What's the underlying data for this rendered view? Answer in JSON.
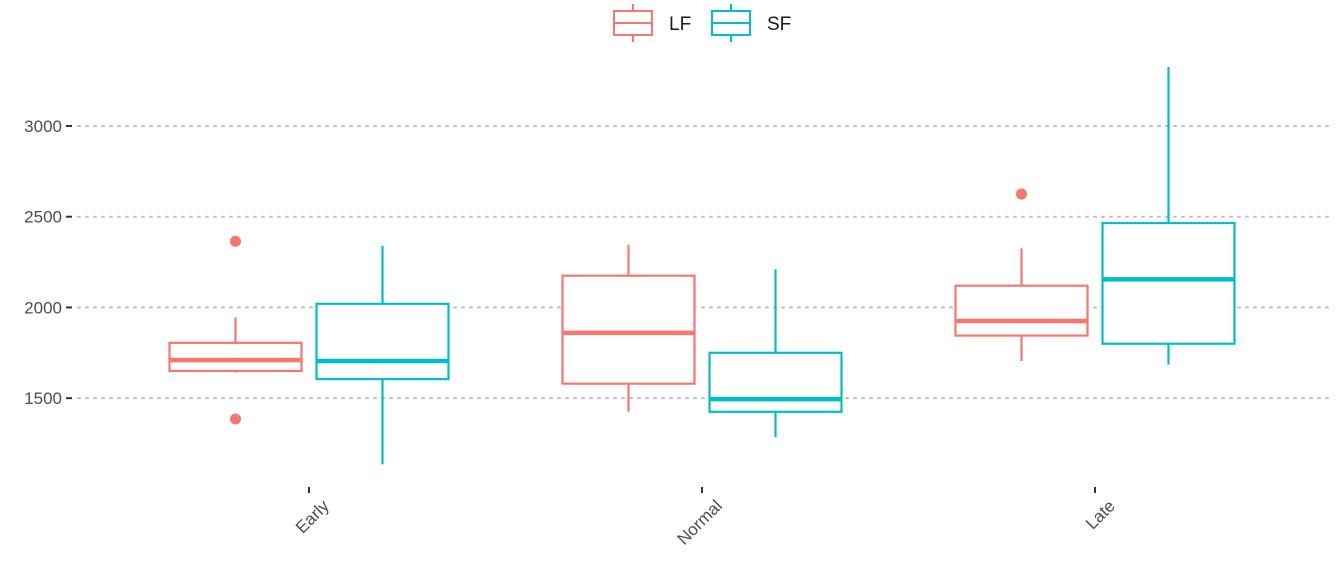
{
  "chart_data": {
    "type": "boxplot",
    "categories": [
      "Early",
      "Normal",
      "Late"
    ],
    "ylim": [
      1060,
      3430
    ],
    "y_ticks": [
      1500,
      2000,
      2500,
      3000
    ],
    "grid": "horizontal dotted major lines",
    "legend_position": "top",
    "xlabel": "",
    "ylabel": "",
    "colors": {
      "LF": "#F8766D",
      "SF": "#00BFC4"
    },
    "series": [
      {
        "name": "LF",
        "color": "#F8766D",
        "boxes": [
          {
            "category": "Early",
            "whisker_low": 1640,
            "q1": 1650,
            "median": 1710,
            "q3": 1805,
            "whisker_high": 1945,
            "outliers": [
              2365,
              1385
            ]
          },
          {
            "category": "Normal",
            "whisker_low": 1425,
            "q1": 1580,
            "median": 1860,
            "q3": 2175,
            "whisker_high": 2345,
            "outliers": []
          },
          {
            "category": "Late",
            "whisker_low": 1705,
            "q1": 1845,
            "median": 1925,
            "q3": 2120,
            "whisker_high": 2325,
            "outliers": [
              2625
            ]
          }
        ]
      },
      {
        "name": "SF",
        "color": "#00BFC4",
        "boxes": [
          {
            "category": "Early",
            "whisker_low": 1135,
            "q1": 1605,
            "median": 1705,
            "q3": 2020,
            "whisker_high": 2340,
            "outliers": []
          },
          {
            "category": "Normal",
            "whisker_low": 1285,
            "q1": 1425,
            "median": 1495,
            "q3": 1750,
            "whisker_high": 2210,
            "outliers": []
          },
          {
            "category": "Late",
            "whisker_low": 1685,
            "q1": 1800,
            "median": 2155,
            "q3": 2465,
            "whisker_high": 3325,
            "outliers": []
          }
        ]
      }
    ]
  }
}
